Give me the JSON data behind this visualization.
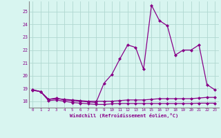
{
  "line1_x": [
    0,
    1,
    2,
    3,
    4,
    5,
    6,
    7,
    8,
    9,
    10,
    11,
    12,
    13,
    14,
    15,
    16,
    17,
    18,
    19,
    20,
    21,
    22,
    23
  ],
  "line1_y": [
    18.85,
    18.75,
    18.05,
    18.1,
    18.0,
    17.9,
    17.85,
    17.8,
    17.75,
    17.75,
    17.8,
    17.82,
    17.82,
    17.82,
    17.82,
    17.82,
    17.82,
    17.82,
    17.82,
    17.82,
    17.82,
    17.85,
    17.85,
    17.85
  ],
  "line2_x": [
    0,
    1,
    2,
    3,
    4,
    5,
    6,
    7,
    8,
    9,
    10,
    11,
    12,
    13,
    14,
    15,
    16,
    17,
    18,
    19,
    20,
    21,
    22,
    23
  ],
  "line2_y": [
    18.9,
    18.75,
    18.15,
    18.2,
    18.15,
    18.1,
    18.05,
    18.0,
    18.0,
    18.0,
    18.0,
    18.05,
    18.1,
    18.1,
    18.1,
    18.15,
    18.2,
    18.2,
    18.2,
    18.2,
    18.2,
    18.25,
    18.3,
    18.3
  ],
  "line3_x": [
    0,
    1,
    2,
    3,
    4,
    5,
    6,
    7,
    8,
    9,
    10,
    11,
    12,
    13,
    14,
    15,
    16,
    17,
    18,
    19,
    20,
    21,
    22,
    23
  ],
  "line3_y": [
    18.9,
    18.75,
    18.15,
    18.25,
    18.1,
    18.05,
    18.0,
    17.95,
    17.9,
    19.4,
    20.1,
    21.3,
    22.4,
    22.2,
    20.5,
    25.5,
    24.3,
    23.9,
    21.6,
    22.0,
    22.0,
    22.4,
    19.3,
    18.9
  ],
  "line_color": "#880088",
  "bg_color": "#d8f5f0",
  "grid_color": "#b0d8d0",
  "xlabel": "Windchill (Refroidissement éolien,°C)",
  "ylim": [
    17.5,
    25.8
  ],
  "xlim": [
    -0.5,
    23.5
  ],
  "yticks": [
    18,
    19,
    20,
    21,
    22,
    23,
    24,
    25
  ],
  "xticks": [
    0,
    1,
    2,
    3,
    4,
    5,
    6,
    7,
    8,
    9,
    10,
    11,
    12,
    13,
    14,
    15,
    16,
    17,
    18,
    19,
    20,
    21,
    22,
    23
  ]
}
